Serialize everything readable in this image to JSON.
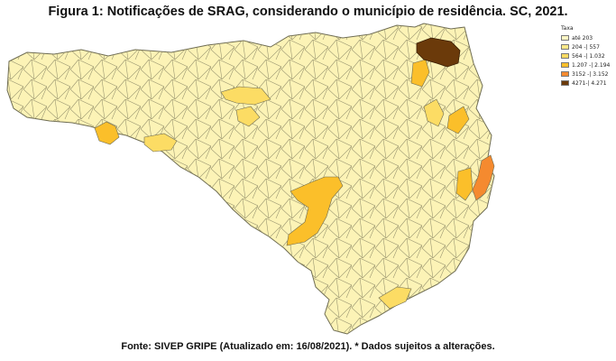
{
  "title": "Figura 1: Notificações de SRAG, considerando o município de residência. SC, 2021.",
  "legend": {
    "title": "Taxa",
    "items": [
      {
        "label": "até 203",
        "color": "#fef6c4"
      },
      {
        "label": "204 -| 557",
        "color": "#fde98a"
      },
      {
        "label": "564 -| 1.032",
        "color": "#fcdc64"
      },
      {
        "label": "1.207 -| 2.194",
        "color": "#fbbf2a"
      },
      {
        "label": "3152 -| 3.152",
        "color": "#f58a2f"
      },
      {
        "label": "4271-| 4.271",
        "color": "#6b3a0a"
      }
    ]
  },
  "map": {
    "base_color": "#fcf3b6",
    "border_color": "#8a8a6a"
  },
  "source": "Fonte: SIVEP GRIPE (Atualizado em: 16/08/2021). * Dados sujeitos a alterações."
}
